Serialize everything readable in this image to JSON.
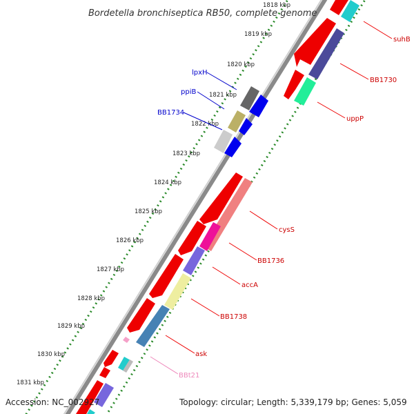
{
  "title": "Bordetella bronchiseptica RB50, complete genome",
  "footer": {
    "accession": "Accession: NC_002927",
    "topology": "Topology: circular; Length: 5,339,179 bp; Genes: 5,059"
  },
  "kbp_ticks": [
    "1818 kbp",
    "1819 kbp",
    "1820 kbp",
    "1821 kbp",
    "1822 kbp",
    "1823 kbp",
    "1824 kbp",
    "1825 kbp",
    "1826 kbp",
    "1827 kbp",
    "1828 kbp",
    "1829 kbp",
    "1830 kbp",
    "1831 kbp"
  ],
  "gene_labels": {
    "suhB": "suhB",
    "BB1730": "BB1730",
    "uppP": "uppP",
    "lpxH": "lpxH",
    "ppiB": "ppiB",
    "BB1734": "BB1734",
    "cysS": "cysS",
    "BB1736": "BB1736",
    "accA": "accA",
    "BB1738": "BB1738",
    "ask": "ask",
    "BBt21": "BBt21"
  },
  "colors": {
    "forward_label": "#cc0000",
    "reverse_label": "#0000cc",
    "trna_label": "#ee88bb",
    "cds": "#ee0000",
    "reverse_cds": "#0000ee",
    "tick": "#2a8a2a",
    "backbone": "#888888"
  }
}
